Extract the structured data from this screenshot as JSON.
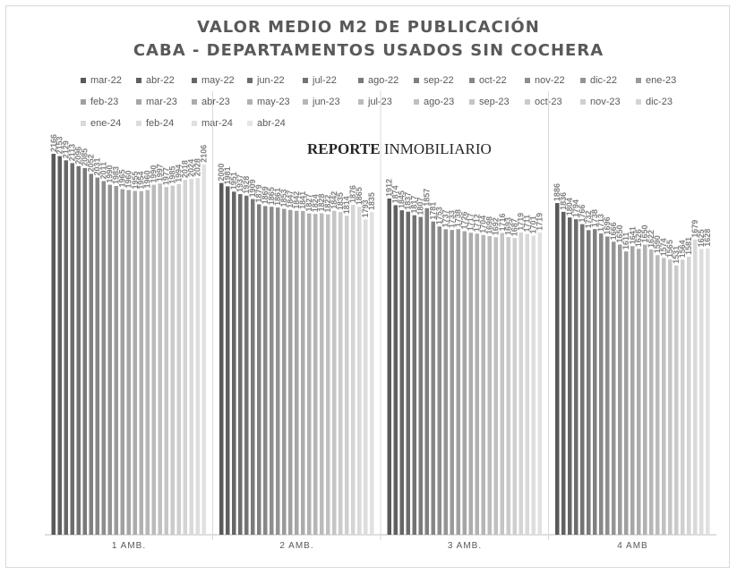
{
  "title": {
    "line1": "VALOR MEDIO M2 DE PUBLICACIÓN",
    "line2": "CABA - DEPARTAMENTOS USADOS SIN COCHERA"
  },
  "watermark": {
    "bold": "REPORTE",
    "rest": " INMOBILIARIO"
  },
  "chart_data": {
    "type": "bar",
    "title": "VALOR MEDIO M2 DE PUBLICACIÓN - CABA - DEPARTAMENTOS USADOS SIN COCHERA",
    "xlabel": "",
    "ylabel": "",
    "ylim": [
      0,
      2450
    ],
    "legend_position": "top",
    "categories": [
      "1 AMB.",
      "2 AMB.",
      "3 AMB.",
      "4 AMB"
    ],
    "series": [
      {
        "name": "mar-22",
        "color": "#595959",
        "values": [
          2166,
          2000,
          1912,
          1886
        ]
      },
      {
        "name": "abr-22",
        "color": "#606060",
        "values": [
          2153,
          1981,
          1874,
          1836
        ]
      },
      {
        "name": "may-22",
        "color": "#666666",
        "values": [
          2129,
          1951,
          1845,
          1804
        ]
      },
      {
        "name": "jun-22",
        "color": "#6d6d6d",
        "values": [
          2113,
          1937,
          1837,
          1794
        ]
      },
      {
        "name": "jul-22",
        "color": "#737373",
        "values": [
          2096,
          1928,
          1817,
          1766
        ]
      },
      {
        "name": "ago-22",
        "color": "#7a7a7a",
        "values": [
          2085,
          1909,
          1807,
          1732
        ]
      },
      {
        "name": "sep-22",
        "color": "#808080",
        "values": [
          2052,
          1879,
          1857,
          1738
        ]
      },
      {
        "name": "oct-22",
        "color": "#878787",
        "values": [
          2031,
          1869,
          1781,
          1713
        ]
      },
      {
        "name": "nov-22",
        "color": "#8d8d8d",
        "values": [
          2011,
          1865,
          1753,
          1696
        ]
      },
      {
        "name": "dic-22",
        "color": "#949494",
        "values": [
          1990,
          1861,
          1737,
          1666
        ]
      },
      {
        "name": "ene-23",
        "color": "#9a9a9a",
        "values": [
          1983,
          1853,
          1733,
          1650
        ]
      },
      {
        "name": "feb-23",
        "color": "#a0a0a0",
        "values": [
          1965,
          1847,
          1738,
          1611
        ]
      },
      {
        "name": "mar-23",
        "color": "#a6a6a6",
        "values": [
          1960,
          1842,
          1726,
          1641
        ]
      },
      {
        "name": "abr-23",
        "color": "#acacac",
        "values": [
          1955,
          1841,
          1717,
          1626
        ]
      },
      {
        "name": "may-23",
        "color": "#b1b1b1",
        "values": [
          1954,
          1827,
          1712,
          1650
        ]
      },
      {
        "name": "jun-23",
        "color": "#b6b6b6",
        "values": [
          1960,
          1824,
          1704,
          1622
        ]
      },
      {
        "name": "jul-23",
        "color": "#bbbbbb",
        "values": [
          1990,
          1828,
          1698,
          1590
        ]
      },
      {
        "name": "ago-23",
        "color": "#c0c0c0",
        "values": [
          1997,
          1822,
          1692,
          1574
        ]
      },
      {
        "name": "sep-23",
        "color": "#c5c5c5",
        "values": [
          1977,
          1842,
          1716,
          1565
        ]
      },
      {
        "name": "oct-23",
        "color": "#cacaca",
        "values": [
          1985,
          1835,
          1693,
          1531
        ]
      },
      {
        "name": "nov-23",
        "color": "#cfcfcf",
        "values": [
          1994,
          1814,
          1687,
          1564
        ]
      },
      {
        "name": "dic-23",
        "color": "#d4d4d4",
        "values": [
          2018,
          1876,
          1719,
          1581
        ]
      },
      {
        "name": "ene-24",
        "color": "#d9d9d9",
        "values": [
          2024,
          1865,
          1711,
          1679
        ]
      },
      {
        "name": "feb-24",
        "color": "#dddddd",
        "values": [
          2028,
          1793,
          1701,
          1625
        ]
      },
      {
        "name": "mar-24",
        "color": "#e1e1e1",
        "values": [
          2106,
          1835,
          1719,
          1628
        ]
      }
    ]
  },
  "legend_extra": [
    {
      "name": "abr-24",
      "color": "#e6e6e6"
    }
  ]
}
